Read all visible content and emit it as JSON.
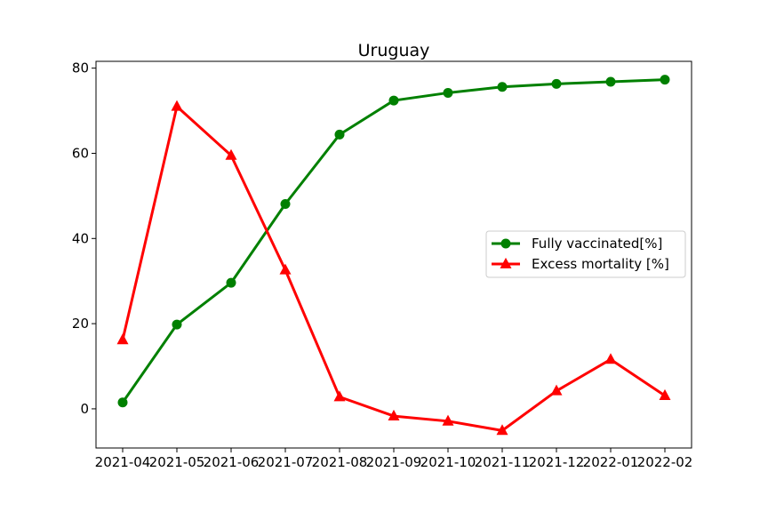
{
  "chart_data": {
    "type": "line",
    "title": "Uruguay",
    "xlabel": "",
    "ylabel": "",
    "categories": [
      "2021-04",
      "2021-05",
      "2021-06",
      "2021-07",
      "2021-08",
      "2021-09",
      "2021-10",
      "2021-11",
      "2021-12",
      "2022-01",
      "2022-02"
    ],
    "y_ticks": [
      0,
      20,
      40,
      60,
      80
    ],
    "ylim": [
      -9.2,
      81.6
    ],
    "grid": false,
    "legend_position": "center-right",
    "series": [
      {
        "name": "Fully vaccinated[%]",
        "color": "#008000",
        "marker": "circle",
        "values": [
          1.5,
          19.8,
          29.6,
          48.1,
          64.4,
          72.4,
          74.2,
          75.6,
          76.3,
          76.8,
          77.3
        ]
      },
      {
        "name": "Excess mortality [%]",
        "color": "#ff0000",
        "marker": "triangle",
        "values": [
          16.2,
          71.0,
          59.5,
          32.6,
          2.8,
          -1.7,
          -2.9,
          -5.1,
          4.2,
          11.6,
          3.1
        ]
      }
    ]
  }
}
